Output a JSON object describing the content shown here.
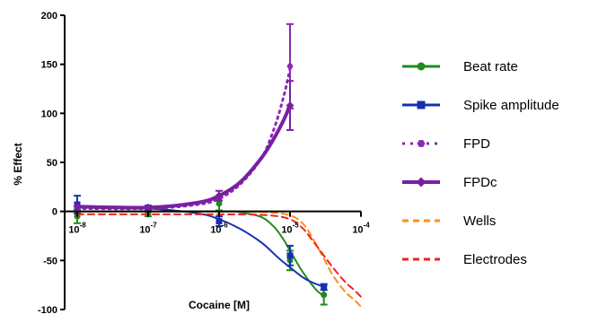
{
  "chart_data": {
    "type": "line",
    "xlabel": "Cocaine [M]",
    "ylabel": "% Effect",
    "x_scale": "log",
    "xlim": [
      1e-08,
      0.0001
    ],
    "ylim": [
      -100,
      200
    ],
    "x_ticks": [
      {
        "value": 1e-08,
        "base": "10",
        "exp": "-8"
      },
      {
        "value": 1e-07,
        "base": "10",
        "exp": "-7"
      },
      {
        "value": 1e-06,
        "base": "10",
        "exp": "-6"
      },
      {
        "value": 1e-05,
        "base": "10",
        "exp": "-5"
      },
      {
        "value": 0.0001,
        "base": "10",
        "exp": "-4"
      }
    ],
    "y_ticks": [
      {
        "value": 200,
        "label": "200"
      },
      {
        "value": 150,
        "label": "150"
      },
      {
        "value": 100,
        "label": "100"
      },
      {
        "value": 50,
        "label": "50"
      },
      {
        "value": 0,
        "label": "0"
      },
      {
        "value": -50,
        "label": "-50"
      },
      {
        "value": -100,
        "label": "-100"
      }
    ],
    "legend_position": "right",
    "series": [
      {
        "name": "Beat rate",
        "color": "#1e8c1e",
        "marker": "circle",
        "line_style": "solid",
        "line_width": 2,
        "points": [
          {
            "x": 1e-08,
            "y": -5,
            "err": 7
          },
          {
            "x": 1e-07,
            "y": -2,
            "err": 3
          },
          {
            "x": 1e-06,
            "y": 8,
            "err": 7
          },
          {
            "x": 1e-05,
            "y": -50,
            "err": 10
          },
          {
            "x": 3e-05,
            "y": -85,
            "err": 10
          }
        ],
        "fit": [
          [
            1e-08,
            0
          ],
          [
            1e-06,
            0
          ],
          [
            2e-06,
            -1
          ],
          [
            4e-06,
            -6
          ],
          [
            6e-06,
            -16
          ],
          [
            8e-06,
            -28
          ],
          [
            1e-05,
            -40
          ],
          [
            1.4e-05,
            -58
          ],
          [
            2e-05,
            -74
          ],
          [
            2.5e-05,
            -82
          ],
          [
            3e-05,
            -86
          ]
        ]
      },
      {
        "name": "Spike amplitude",
        "color": "#1a2fb0",
        "marker": "square",
        "line_style": "solid",
        "line_width": 2,
        "points": [
          {
            "x": 1e-08,
            "y": 7,
            "err": 9
          },
          {
            "x": 1e-07,
            "y": 3,
            "err": 3
          },
          {
            "x": 1e-06,
            "y": -10,
            "err": 5
          },
          {
            "x": 1e-05,
            "y": -45,
            "err": 10
          },
          {
            "x": 3e-05,
            "y": -77,
            "err": 3
          }
        ],
        "fit": [
          [
            1e-08,
            5
          ],
          [
            1e-07,
            3
          ],
          [
            5e-07,
            -2
          ],
          [
            1e-06,
            -8
          ],
          [
            2e-06,
            -18
          ],
          [
            4e-06,
            -32
          ],
          [
            7e-06,
            -48
          ],
          [
            1e-05,
            -57
          ],
          [
            1.5e-05,
            -67
          ],
          [
            2e-05,
            -72
          ],
          [
            3e-05,
            -77
          ]
        ]
      },
      {
        "name": "FPD",
        "color": "#8a2ab5",
        "marker": "hexagon",
        "line_style": "dotted",
        "line_width": 3,
        "points": [
          {
            "x": 1e-08,
            "y": 3,
            "err": 0
          },
          {
            "x": 1e-07,
            "y": 3,
            "err": 0
          },
          {
            "x": 1e-06,
            "y": 13,
            "err": 0
          },
          {
            "x": 1e-05,
            "y": 148,
            "err": 43
          }
        ],
        "fit": [
          [
            1e-08,
            3
          ],
          [
            1e-07,
            3
          ],
          [
            5e-07,
            7
          ],
          [
            1e-06,
            13
          ],
          [
            2e-06,
            28
          ],
          [
            4e-06,
            55
          ],
          [
            6e-06,
            85
          ],
          [
            8e-06,
            115
          ],
          [
            1e-05,
            145
          ]
        ]
      },
      {
        "name": "FPDc",
        "color": "#7a1fa2",
        "marker": "diamond",
        "line_style": "solid",
        "line_width": 4,
        "points": [
          {
            "x": 1e-08,
            "y": 5,
            "err": 0
          },
          {
            "x": 1e-07,
            "y": 4,
            "err": 0
          },
          {
            "x": 1e-06,
            "y": 16,
            "err": 5
          },
          {
            "x": 1e-05,
            "y": 108,
            "err": 25
          }
        ],
        "fit": [
          [
            1e-08,
            5
          ],
          [
            1e-07,
            4
          ],
          [
            5e-07,
            9
          ],
          [
            1e-06,
            16
          ],
          [
            2e-06,
            30
          ],
          [
            4e-06,
            55
          ],
          [
            6e-06,
            75
          ],
          [
            8e-06,
            92
          ],
          [
            1e-05,
            108
          ]
        ]
      },
      {
        "name": "Wells",
        "color": "#ff8c1a",
        "marker": "none",
        "line_style": "dashed",
        "line_width": 2,
        "points": [],
        "fit": [
          [
            1e-08,
            0
          ],
          [
            1e-06,
            0
          ],
          [
            5e-06,
            -1
          ],
          [
            1e-05,
            -4
          ],
          [
            1.5e-05,
            -12
          ],
          [
            2e-05,
            -25
          ],
          [
            3e-05,
            -48
          ],
          [
            4e-05,
            -65
          ],
          [
            6e-05,
            -82
          ],
          [
            8e-05,
            -90
          ],
          [
            0.0001,
            -97
          ]
        ]
      },
      {
        "name": "Electrodes",
        "color": "#ee2222",
        "marker": "none",
        "line_style": "dashed",
        "line_width": 2,
        "points": [],
        "fit": [
          [
            1e-08,
            -3
          ],
          [
            1e-06,
            -3
          ],
          [
            5e-06,
            -4
          ],
          [
            1e-05,
            -8
          ],
          [
            1.5e-05,
            -17
          ],
          [
            2e-05,
            -28
          ],
          [
            3e-05,
            -45
          ],
          [
            4e-05,
            -57
          ],
          [
            6e-05,
            -72
          ],
          [
            8e-05,
            -80
          ],
          [
            0.0001,
            -87
          ]
        ]
      }
    ]
  }
}
